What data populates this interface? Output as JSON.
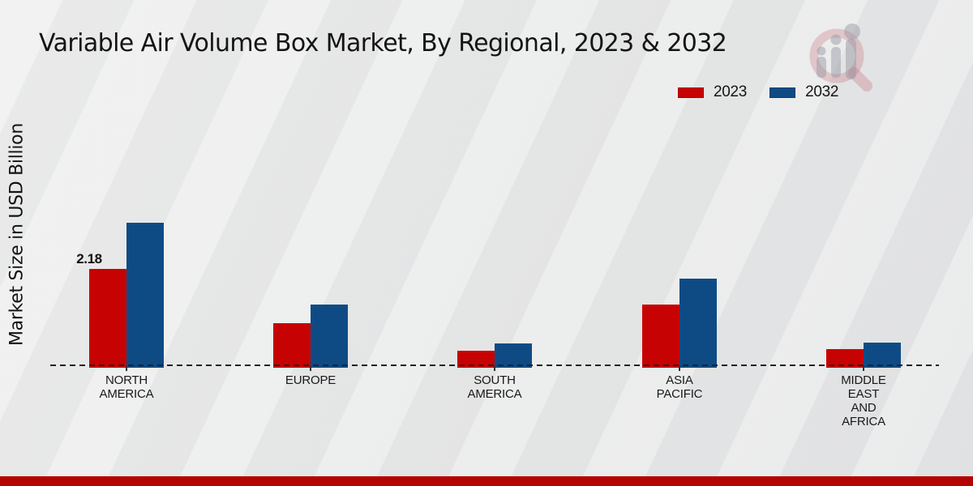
{
  "title": "Variable Air Volume Box Market, By Regional, 2023 & 2032",
  "y_axis_label": "Market Size in USD Billion",
  "legend": [
    {
      "label": "2023",
      "color": "#c70202"
    },
    {
      "label": "2032",
      "color": "#0e4b85"
    }
  ],
  "colors": {
    "series_2023": "#c70202",
    "series_2032": "#0e4b85",
    "footer_bar": "#b40303",
    "axis": "#222222"
  },
  "watermark_icon": "magnifier-bar-chart-logo",
  "chart_data": {
    "type": "bar",
    "title": "Variable Air Volume Box Market, By Regional, 2023 & 2032",
    "xlabel": "",
    "ylabel": "Market Size in USD Billion",
    "unit": "USD Billion",
    "legend_position": "top-right",
    "grid": false,
    "baseline_style": "dashed",
    "categories": [
      "NORTH AMERICA",
      "EUROPE",
      "SOUTH AMERICA",
      "ASIA PACIFIC",
      "MIDDLE EAST AND AFRICA"
    ],
    "category_label_lines": [
      "NORTH\nAMERICA",
      "EUROPE",
      "SOUTH\nAMERICA",
      "ASIA\nPACIFIC",
      "MIDDLE\nEAST\nAND\nAFRICA"
    ],
    "series": [
      {
        "name": "2023",
        "color": "#c70202",
        "values": [
          2.18,
          0.98,
          0.38,
          1.4,
          0.41
        ]
      },
      {
        "name": "2032",
        "color": "#0e4b85",
        "values": [
          3.2,
          1.4,
          0.54,
          1.97,
          0.56
        ]
      }
    ],
    "data_labels": {
      "series": "2023",
      "values": [
        "2.18",
        "",
        "",
        "",
        ""
      ]
    },
    "ylim": [
      0,
      3.5
    ]
  }
}
